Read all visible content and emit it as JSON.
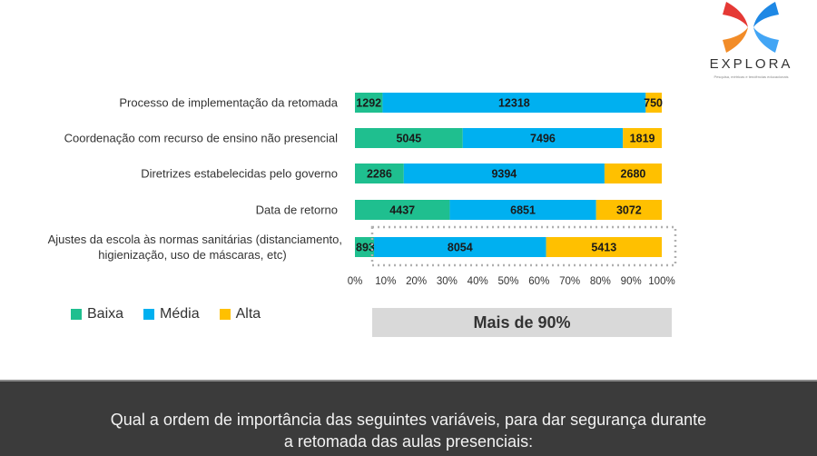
{
  "logo": {
    "name": "EXPLORA",
    "tagline": "Pesquisa, métricas e tendências educacionais",
    "colors": {
      "red": "#e53935",
      "orange": "#f28c28",
      "blue": "#1e88e5"
    }
  },
  "chart_data": {
    "type": "bar",
    "orientation": "horizontal",
    "stacked": "percent",
    "categories": [
      "Processo de implementação da retomada",
      "Coordenação com recurso de ensino não presencial",
      "Diretrizes estabelecidas pelo governo",
      "Data de retorno",
      "Ajustes da escola às normas sanitárias (distanciamento, higienização, uso de máscaras, etc)"
    ],
    "category_lines": [
      [
        "Processo de implementação da retomada"
      ],
      [
        "Coordenação com recurso de ensino não presencial"
      ],
      [
        "Diretrizes estabelecidas pelo governo"
      ],
      [
        "Data de retorno"
      ],
      [
        "Ajustes da escola às normas sanitárias (distanciamento,",
        "higienização, uso de máscaras, etc)"
      ]
    ],
    "series": [
      {
        "name": "Baixa",
        "color": "#1fbf8f",
        "values": [
          1292,
          5045,
          2286,
          4437,
          893
        ],
        "labels": [
          "1292",
          "5045",
          "2286",
          "4437",
          "893"
        ]
      },
      {
        "name": "Média",
        "color": "#00b0f0",
        "values": [
          12318,
          7496,
          9394,
          6851,
          8054
        ],
        "labels": [
          "12318",
          "7496",
          "9394",
          "6851",
          "8054"
        ]
      },
      {
        "name": "Alta",
        "color": "#ffc000",
        "values": [
          750,
          1819,
          2680,
          3072,
          5413
        ],
        "labels": [
          "750",
          "1819",
          "2680",
          "3072",
          "5413"
        ]
      }
    ],
    "xlim": [
      0,
      100
    ],
    "xticks": [
      "0%",
      "10%",
      "20%",
      "30%",
      "40%",
      "50%",
      "60%",
      "70%",
      "80%",
      "90%",
      "100%"
    ],
    "grid": false,
    "legend_position": "bottom-left",
    "highlight_category_index": 4,
    "title": "",
    "xlabel": "",
    "ylabel": ""
  },
  "callout": {
    "text": "Mais de 90%"
  },
  "footer": {
    "question": "Qual a ordem de importância das seguintes variáveis, para dar segurança durante a retomada das aulas presenciais:"
  }
}
